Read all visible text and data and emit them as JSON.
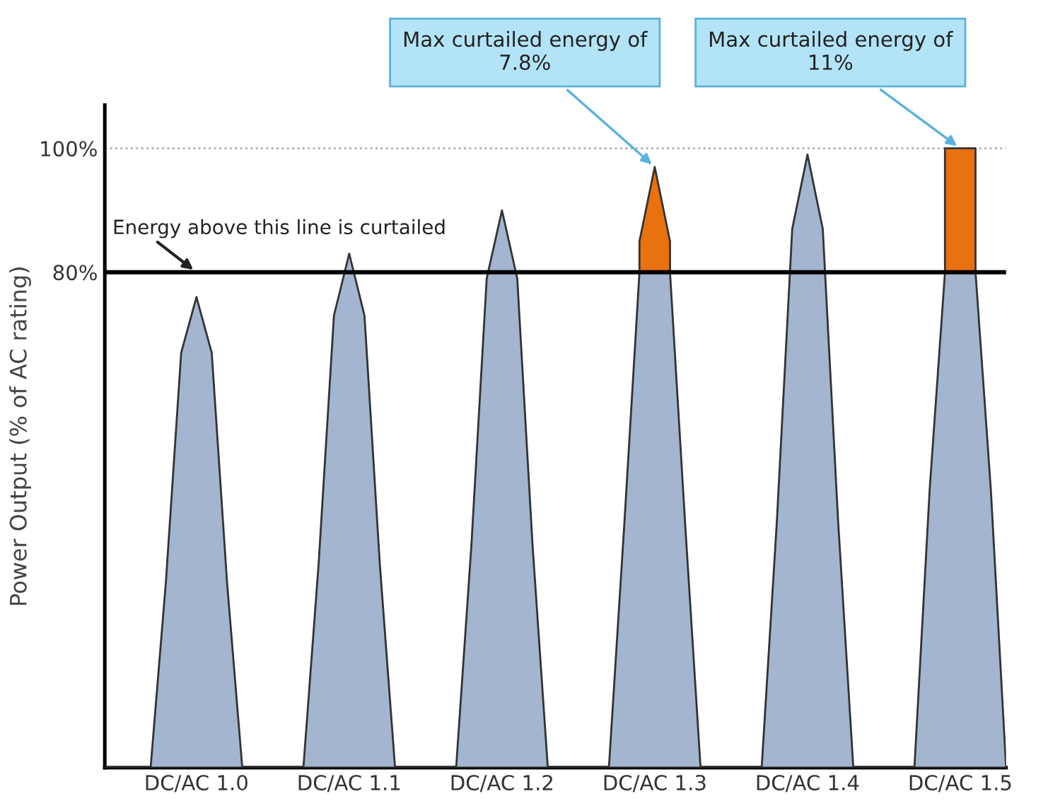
{
  "chart_data": {
    "type": "area",
    "ylabel": "Power Output (% of AC rating)",
    "categories": [
      null,
      null,
      null,
      null,
      null,
      null,
      "DC/AC 1.0",
      null,
      null,
      null,
      null,
      null,
      null,
      null,
      null,
      null,
      "DC/AC 1.1",
      null,
      null,
      null,
      null,
      null,
      null,
      null,
      null,
      null,
      "DC/AC 1.2",
      null,
      null,
      null,
      null,
      null,
      null,
      null,
      null,
      null,
      "DC/AC 1.3",
      null,
      null,
      null,
      null,
      null,
      null,
      null,
      null,
      null,
      "DC/AC 1.4",
      null,
      null,
      null,
      null,
      null,
      null,
      null,
      null,
      null,
      "DC/AC 1.5",
      null,
      null,
      null
    ],
    "ylim": [
      0,
      107
    ],
    "yticks": [
      {
        "value": 80,
        "label": "80%"
      },
      {
        "value": 100,
        "label": "100%"
      }
    ],
    "grid": false,
    "stacked": true,
    "series": [
      {
        "color": "#a3b5cf",
        "values": [
          0,
          0,
          0,
          0,
          30,
          67,
          76,
          67,
          30,
          0,
          0,
          0,
          0,
          0,
          33,
          73,
          83,
          73,
          33,
          0,
          0,
          0,
          0,
          0,
          36,
          79,
          90,
          79,
          36,
          0,
          0,
          0,
          0,
          0,
          39,
          80,
          80,
          80,
          39,
          0,
          0,
          0,
          0,
          0,
          40,
          87,
          99,
          87,
          40,
          0,
          0,
          0,
          0,
          0,
          45,
          80,
          80,
          80,
          45,
          0
        ]
      },
      {
        "color": "#e8720f",
        "values": [
          null,
          null,
          null,
          null,
          null,
          null,
          null,
          null,
          null,
          null,
          null,
          null,
          null,
          null,
          null,
          null,
          null,
          null,
          null,
          null,
          null,
          null,
          null,
          null,
          null,
          null,
          null,
          null,
          null,
          null,
          null,
          null,
          null,
          null,
          null,
          5,
          17,
          5,
          null,
          null,
          null,
          null,
          null,
          null,
          null,
          null,
          null,
          null,
          null,
          null,
          null,
          null,
          null,
          null,
          null,
          20,
          20,
          20,
          null,
          null
        ]
      }
    ],
    "ref_lines": [
      {
        "axis": "y",
        "value": 80,
        "label": "Energy above this line is curtailed",
        "color": "#000000",
        "line_style": "solid"
      },
      {
        "axis": "y",
        "value": 100,
        "color": "#aaaaaa",
        "line_style": "dotted"
      }
    ],
    "annotations": [
      {
        "text": "Max curtailed energy of\n7.8%",
        "x": "DC/AC 1.3",
        "y": 97
      },
      {
        "text": "Max curtailed energy of\n11%",
        "x": "DC/AC 1.5",
        "y": 100
      }
    ]
  }
}
